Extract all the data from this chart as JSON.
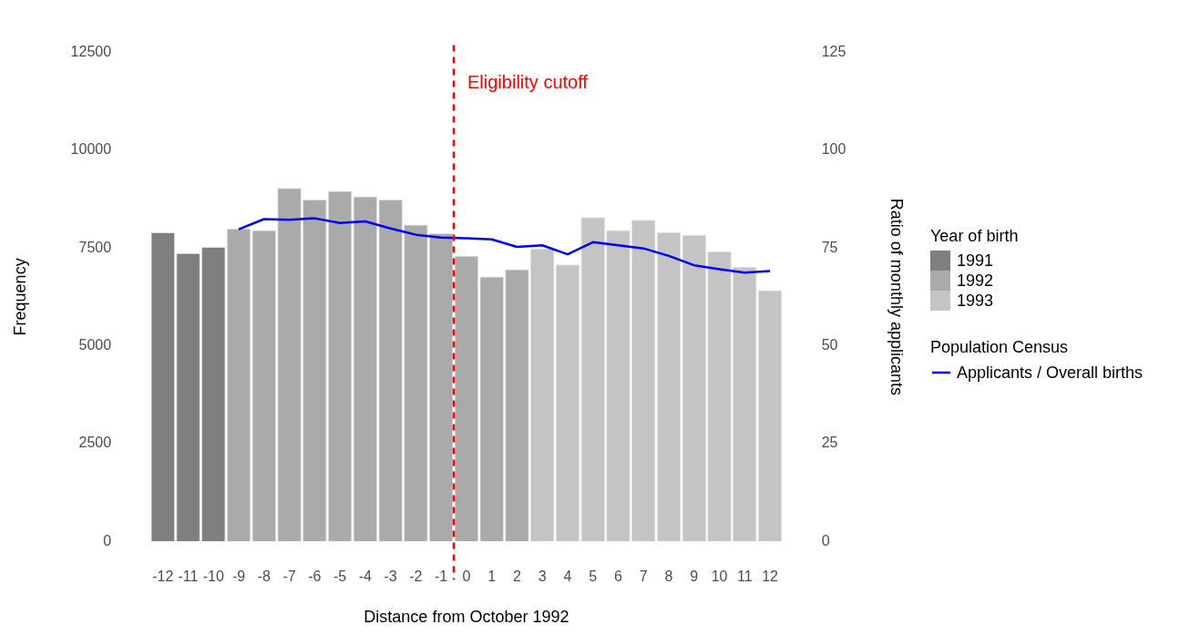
{
  "chart_data": {
    "type": "bar",
    "xlabel": "Distance from October 1992",
    "ylabel": "Frequency",
    "y2label": "Ratio of monthly applicants",
    "legend_title": [
      "Year of birth",
      "Population Census"
    ],
    "x": [
      -12,
      -11,
      -10,
      -9,
      -8,
      -7,
      -6,
      -5,
      -4,
      -3,
      -2,
      -1,
      0,
      1,
      2,
      3,
      4,
      5,
      6,
      7,
      8,
      9,
      10,
      11,
      12
    ],
    "series": [
      {
        "name": "1991",
        "color": "#7f7f7f",
        "values": [
          7900,
          7370,
          7530,
          null,
          null,
          null,
          null,
          null,
          null,
          null,
          null,
          null,
          null,
          null,
          null,
          null,
          null,
          null,
          null,
          null,
          null,
          null,
          null,
          null,
          null
        ]
      },
      {
        "name": "1992",
        "color": "#aaaaaa",
        "values": [
          null,
          null,
          null,
          8000,
          7960,
          9040,
          8740,
          8960,
          8820,
          8740,
          8100,
          7880,
          7300,
          6770,
          6960,
          null,
          null,
          null,
          null,
          null,
          null,
          null,
          null,
          null,
          null
        ]
      },
      {
        "name": "1993",
        "color": "#c4c4c4",
        "values": [
          null,
          null,
          null,
          null,
          null,
          null,
          null,
          null,
          null,
          null,
          null,
          null,
          null,
          null,
          null,
          7490,
          7080,
          8290,
          7960,
          8220,
          7900,
          7840,
          7410,
          7020,
          6420
        ]
      },
      {
        "name": "Applicants / Overall births",
        "type": "line",
        "axis": "y2",
        "color": "#0000ff",
        "values": [
          null,
          null,
          null,
          79.8,
          82.4,
          82.2,
          82.6,
          81.4,
          81.8,
          80.0,
          78.4,
          77.7,
          77.5,
          77.2,
          75.3,
          75.7,
          73.4,
          76.5,
          75.7,
          74.9,
          73.0,
          70.6,
          69.6,
          68.7,
          69.1
        ]
      }
    ],
    "xlim": [
      -12.6,
      12.6
    ],
    "xticks": [
      -12,
      -11,
      -10,
      -9,
      -8,
      -7,
      -6,
      -5,
      -4,
      -3,
      -2,
      -1,
      0,
      1,
      2,
      3,
      4,
      5,
      6,
      7,
      8,
      9,
      10,
      11,
      12
    ],
    "ylim": [
      0,
      12500
    ],
    "yticks": [
      0,
      2500,
      5000,
      7500,
      10000,
      12500
    ],
    "y2lim": [
      0,
      125
    ],
    "y2ticks": [
      0,
      25,
      50,
      75,
      100,
      125
    ],
    "ref_lines": [
      {
        "axis": "x",
        "value": -0.5,
        "label": "Eligibility cutoff",
        "color": "#ff0000",
        "line_style": "dashed"
      }
    ],
    "grid": false,
    "legend": "right",
    "marker": "none",
    "line_style": "solid"
  }
}
